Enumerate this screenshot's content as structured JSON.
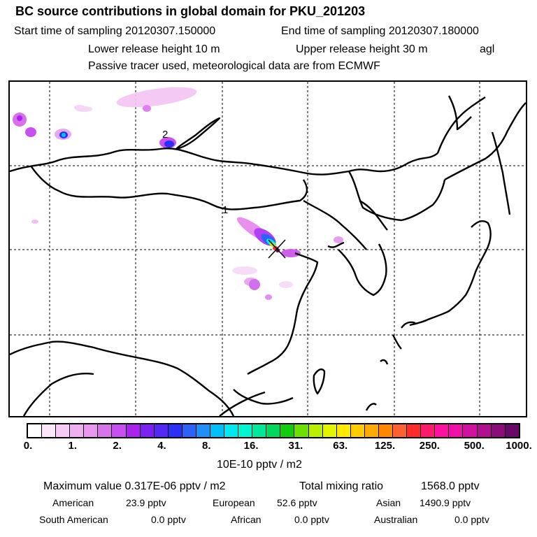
{
  "header": {
    "title": "BC  source contributions in global domain for PKU_201203",
    "start_label": "Start time of sampling 20120307.150000",
    "end_label": "End time of sampling 20120307.180000",
    "lower_label": "Lower release height   10 m",
    "upper_label": "Upper release height   30 m",
    "agl": "agl",
    "note": "Passive tracer used, meteorological data are from ECMWF"
  },
  "map": {
    "markers": [
      {
        "label": "1"
      },
      {
        "label": "2"
      }
    ],
    "source_marker": "x-marker-icon"
  },
  "colorbar": {
    "colors": [
      "#ffffff",
      "#fbe6fb",
      "#f6ccf6",
      "#f0b0f0",
      "#e896ee",
      "#d874ea",
      "#c850f0",
      "#aa22ee",
      "#7d20f2",
      "#5528f5",
      "#2a30f5",
      "#2d62f7",
      "#1e90f8",
      "#00c0f8",
      "#00e8f0",
      "#00f6d0",
      "#00e89a",
      "#00d860",
      "#12cc10",
      "#6ce000",
      "#b8f000",
      "#e6f400",
      "#ffea00",
      "#ffcc00",
      "#ffaa00",
      "#ff8800",
      "#ff6030",
      "#ff2a2a",
      "#ff1a6e",
      "#ff10a0",
      "#ee10a8",
      "#d010a0",
      "#b0108e",
      "#8c0c7c",
      "#6a086a"
    ],
    "labels": [
      "0.",
      "1.",
      "2.",
      "4.",
      "8.",
      "16.",
      "31.",
      "63.",
      "125.",
      "250.",
      "500.",
      "1000."
    ],
    "units": "10E-10 pptv / m2"
  },
  "stats": {
    "max_label": "Maximum value  0.317E-06 pptv / m2",
    "total_label": "Total mixing ratio",
    "total_value": "1568.0 pptv",
    "american_label": "American",
    "american_value": "23.9 pptv",
    "european_label": "European",
    "european_value": "52.6 pptv",
    "asian_label": "Asian",
    "asian_value": "1490.9 pptv",
    "south_american_label": "South American",
    "south_american_value": "0.0 pptv",
    "african_label": "African",
    "african_value": "0.0 pptv",
    "australian_label": "Australian",
    "australian_value": "0.0 pptv"
  }
}
